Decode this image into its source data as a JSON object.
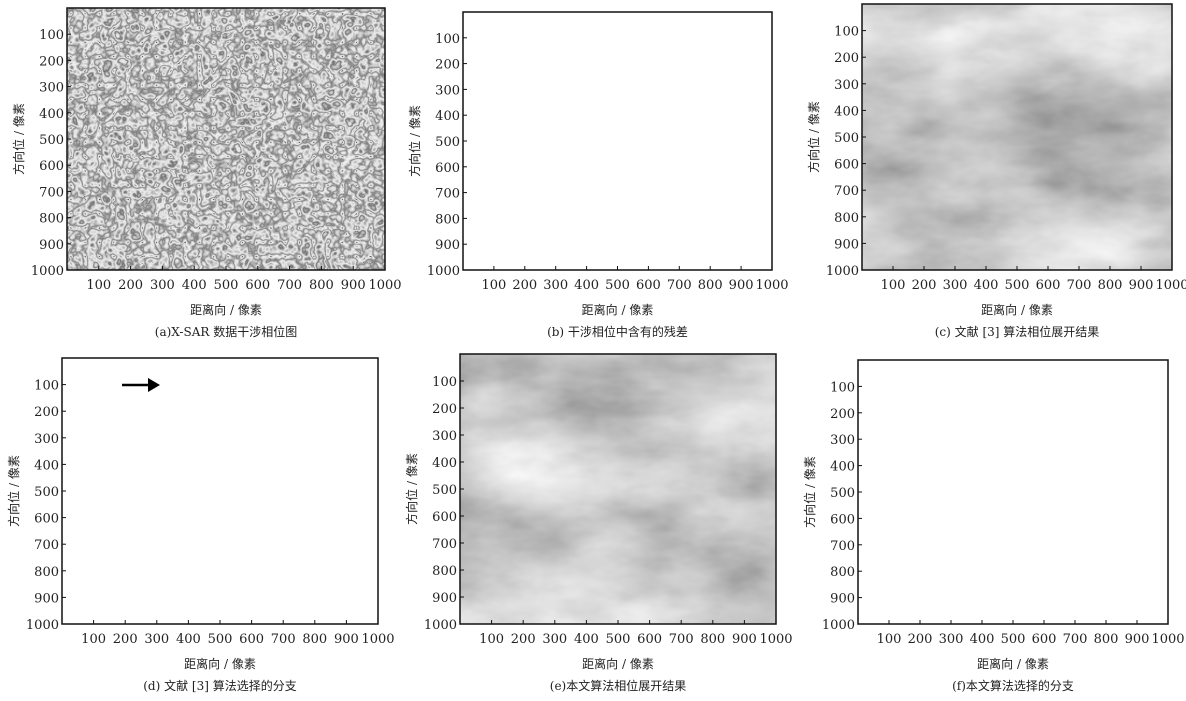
{
  "figure": {
    "panels": [
      {
        "caption": "(a)X-SAR 数据干涉相位图",
        "x_label": "距离向 / 像素",
        "y_label": "方向位 / 像素",
        "xlim": [
          0,
          1000
        ],
        "ylim": [
          0,
          1000
        ],
        "xticks": [
          100,
          200,
          300,
          400,
          500,
          600,
          700,
          800,
          900,
          1000
        ],
        "yticks": [
          100,
          200,
          300,
          400,
          500,
          600,
          700,
          800,
          900,
          1000
        ]
      },
      {
        "caption": "(b) 干涉相位中含有的残差",
        "x_label": "距离向 / 像素",
        "y_label": "方向位 / 像素",
        "xlim": [
          0,
          1000
        ],
        "ylim": [
          0,
          1000
        ],
        "xticks": [
          100,
          200,
          300,
          400,
          500,
          600,
          700,
          800,
          900,
          1000
        ],
        "yticks": [
          100,
          200,
          300,
          400,
          500,
          600,
          700,
          800,
          900,
          1000
        ]
      },
      {
        "caption": "(c) 文献 [3] 算法相位展开结果",
        "x_label": "距离向 / 像素",
        "y_label": "方向位 / 像素",
        "xlim": [
          0,
          1000
        ],
        "ylim": [
          0,
          1000
        ],
        "xticks": [
          100,
          200,
          300,
          400,
          500,
          600,
          700,
          800,
          900,
          1000
        ],
        "yticks": [
          100,
          200,
          300,
          400,
          500,
          600,
          700,
          800,
          900,
          1000
        ]
      },
      {
        "caption": "(d) 文献 [3] 算法选择的分支",
        "x_label": "距离向 / 像素",
        "y_label": "方向位 / 像素",
        "xlim": [
          0,
          1000
        ],
        "ylim": [
          0,
          1000
        ],
        "xticks": [
          100,
          200,
          300,
          400,
          500,
          600,
          700,
          800,
          900,
          1000
        ],
        "yticks": [
          100,
          200,
          300,
          400,
          500,
          600,
          700,
          800,
          900,
          1000
        ]
      },
      {
        "caption": "(e)本文算法相位展开结果",
        "x_label": "距离向 / 像素",
        "y_label": "方向位 / 像素",
        "xlim": [
          0,
          1000
        ],
        "ylim": [
          0,
          1000
        ],
        "xticks": [
          100,
          200,
          300,
          400,
          500,
          600,
          700,
          800,
          900,
          1000
        ],
        "yticks": [
          100,
          200,
          300,
          400,
          500,
          600,
          700,
          800,
          900,
          1000
        ]
      },
      {
        "caption": "(f)本文算法选择的分支",
        "x_label": "距离向 / 像素",
        "y_label": "方向位 / 像素",
        "xlim": [
          0,
          1000
        ],
        "ylim": [
          0,
          1000
        ],
        "xticks": [
          100,
          200,
          300,
          400,
          500,
          600,
          700,
          800,
          900,
          1000
        ],
        "yticks": [
          100,
          200,
          300,
          400,
          500,
          600,
          700,
          800,
          900,
          1000
        ]
      }
    ]
  }
}
